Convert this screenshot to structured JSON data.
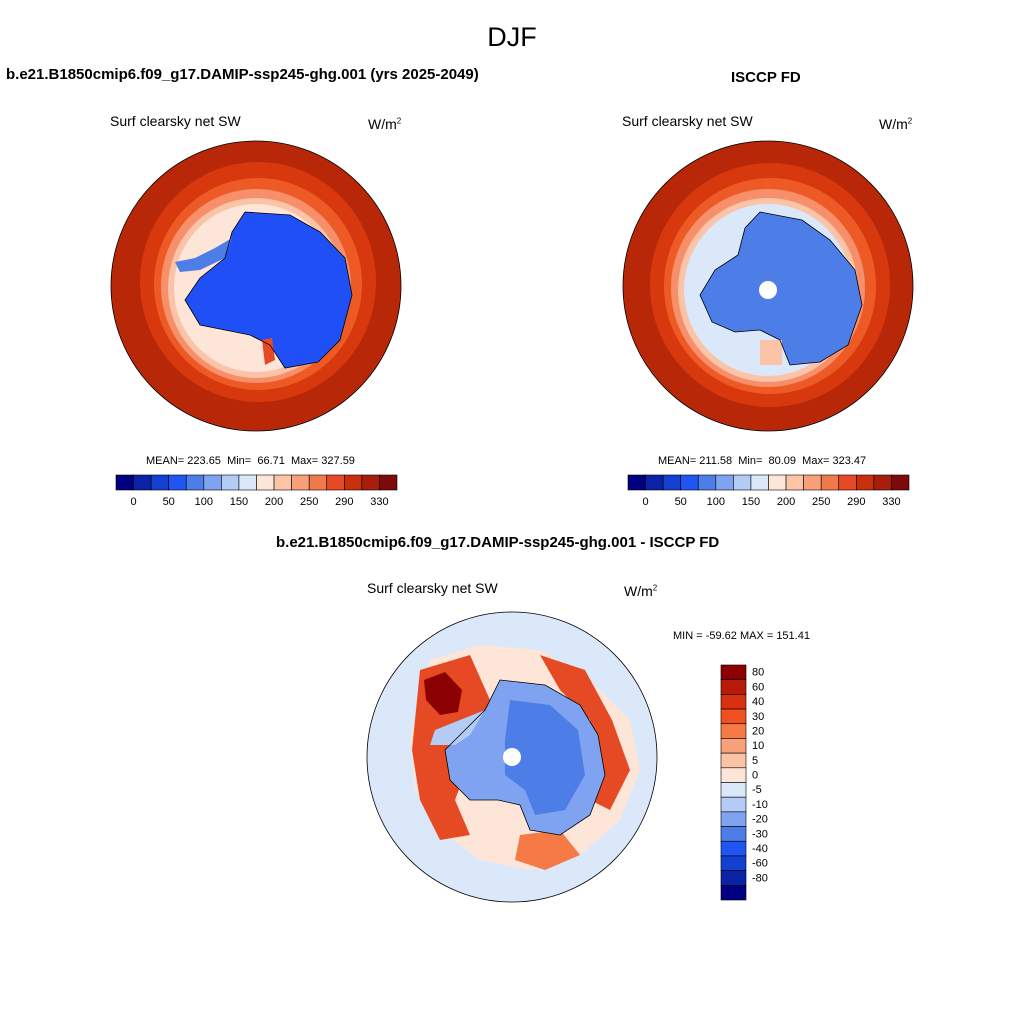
{
  "figure_title": "DJF",
  "chart_data": [
    {
      "type": "heatmap",
      "title": "b.e21.B1850cmip6.f09_g17.DAMIP-ssp245-ghg.001 (yrs 2025-2049)",
      "variable": "Surf clearsky net SW",
      "units_base": "W/m",
      "units_exp": "2",
      "projection": "south polar stereographic",
      "stats": {
        "mean_label": "MEAN=",
        "mean": "223.65",
        "min_label": "Min=",
        "min": "66.71",
        "max_label": "Max=",
        "max": "327.59"
      },
      "colorbar_ticks": [
        "0",
        "50",
        "100",
        "150",
        "200",
        "250",
        "290",
        "330"
      ],
      "levels": [
        0,
        25,
        50,
        75,
        100,
        125,
        150,
        175,
        200,
        225,
        250,
        270,
        290,
        310,
        330
      ],
      "colors": [
        "#000080",
        "#0a23a6",
        "#1240d0",
        "#1f55f0",
        "#4d7de6",
        "#7fa3f0",
        "#b3cbf5",
        "#dbe8fa",
        "#fde6d8",
        "#fcc5a8",
        "#f7a07a",
        "#f07a4c",
        "#e54a24",
        "#c8300c",
        "#a81e0a",
        "#7d0a0a"
      ]
    },
    {
      "type": "heatmap",
      "title": "ISCCP FD",
      "variable": "Surf clearsky net SW",
      "units_base": "W/m",
      "units_exp": "2",
      "projection": "south polar stereographic",
      "stats": {
        "mean_label": "MEAN=",
        "mean": "211.58",
        "min_label": "Min=",
        "min": "80.09",
        "max_label": "Max=",
        "max": "323.47"
      },
      "colorbar_ticks": [
        "0",
        "50",
        "100",
        "150",
        "200",
        "250",
        "290",
        "330"
      ],
      "levels": [
        0,
        25,
        50,
        75,
        100,
        125,
        150,
        175,
        200,
        225,
        250,
        270,
        290,
        310,
        330
      ],
      "colors": [
        "#000080",
        "#0a23a6",
        "#1240d0",
        "#1f55f0",
        "#4d7de6",
        "#7fa3f0",
        "#b3cbf5",
        "#dbe8fa",
        "#fde6d8",
        "#fcc5a8",
        "#f7a07a",
        "#f07a4c",
        "#e54a24",
        "#c8300c",
        "#a81e0a",
        "#7d0a0a"
      ]
    },
    {
      "type": "heatmap",
      "title": "b.e21.B1850cmip6.f09_g17.DAMIP-ssp245-ghg.001 - ISCCP FD",
      "variable": "Surf clearsky net SW",
      "units_base": "W/m",
      "units_exp": "2",
      "projection": "south polar stereographic",
      "minmax_text": "MIN = -59.62 MAX = 151.41",
      "colorbar_ticks": [
        "80",
        "60",
        "40",
        "30",
        "20",
        "10",
        "5",
        "0",
        "-5",
        "-10",
        "-20",
        "-30",
        "-40",
        "-60",
        "-80"
      ],
      "colors": [
        "#8b0000",
        "#b81a08",
        "#d93010",
        "#f05020",
        "#f57a45",
        "#f8a07a",
        "#fbc4a6",
        "#fde6d8",
        "#dbe8fa",
        "#b3cbf5",
        "#7fa3f0",
        "#4d7de6",
        "#1f55f0",
        "#1240d0",
        "#0a23a6",
        "#000080"
      ]
    }
  ]
}
